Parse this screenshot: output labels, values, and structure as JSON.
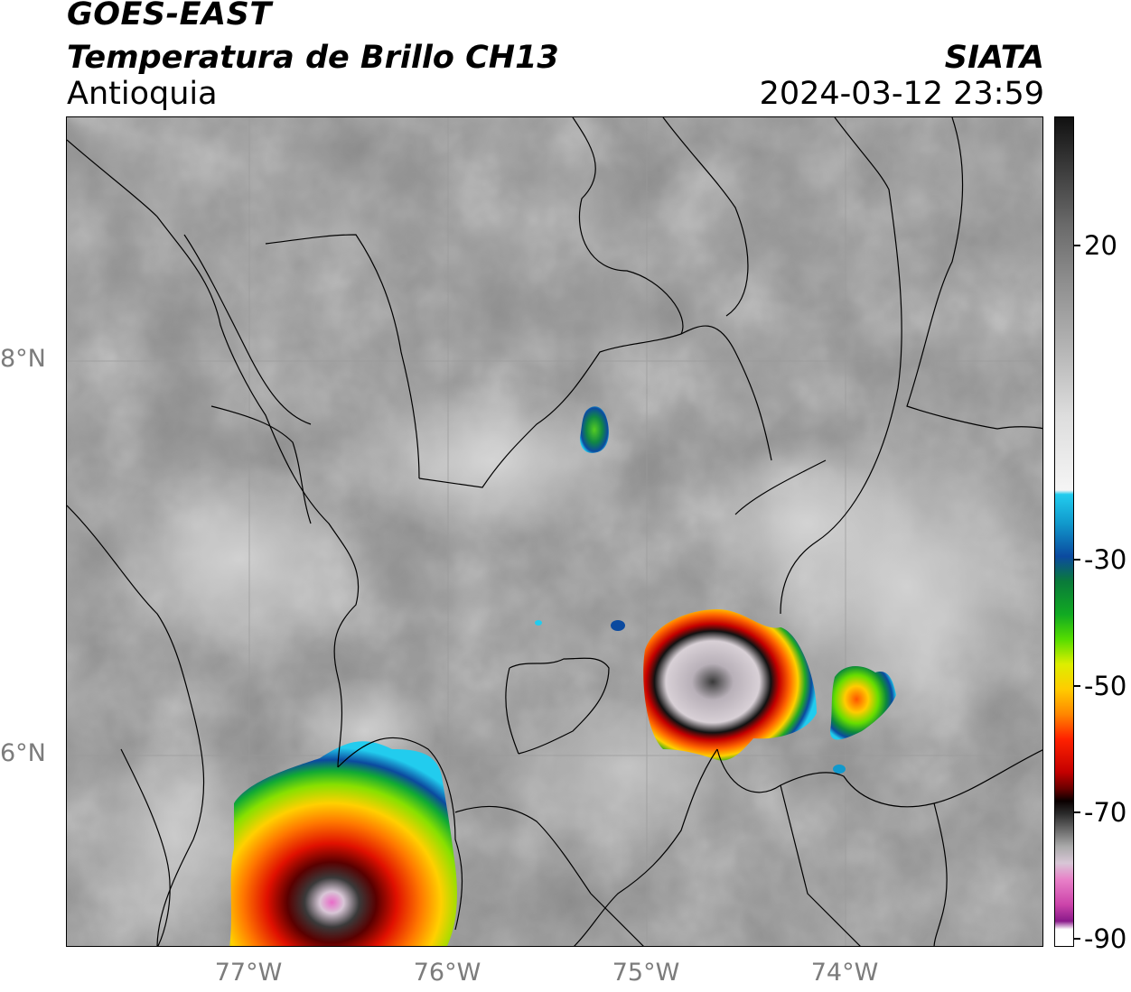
{
  "header": {
    "satellite": "GOES-EAST",
    "product": "Temperatura de Brillo CH13",
    "region": "Antioquia",
    "org": "SIATA",
    "datetime": "2024-03-12 23:59"
  },
  "axes": {
    "lat_ticks": [
      "8°N",
      "6°N"
    ],
    "lon_ticks": [
      "77°W",
      "76°W",
      "75°W",
      "74°W"
    ]
  },
  "colorbar": {
    "ticks": [
      "20",
      "-30",
      "-50",
      "-70",
      "-90"
    ]
  },
  "colors": {
    "background_gray": "#8a8a8a",
    "border": "#000000",
    "tick_gray": "#7c7c7c"
  }
}
